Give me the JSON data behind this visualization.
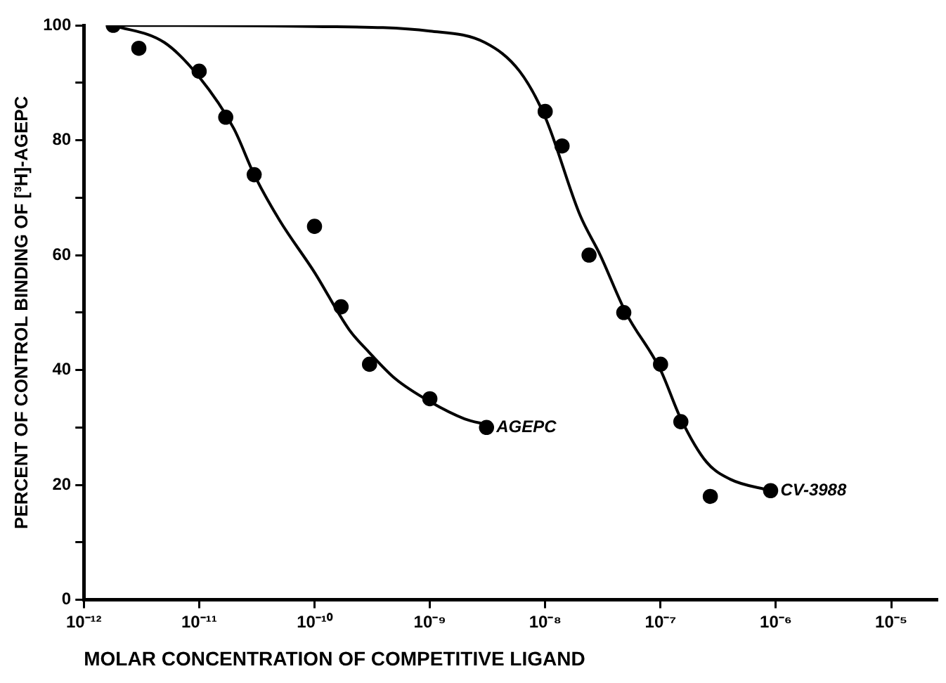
{
  "chart_data": {
    "type": "scatter",
    "xlabel": "MOLAR CONCENTRATION OF COMPETITIVE LIGAND",
    "ylabel": "PERCENT OF CONTROL BINDING OF [³H]-AGEPC",
    "log": "x",
    "grid": false,
    "legend": false,
    "marker": "circle",
    "xlim": [
      1e-12,
      2.5e-05
    ],
    "xticks": [
      {
        "value": 1e-12,
        "label": "10⁻¹²"
      },
      {
        "value": 1e-11,
        "label": "10⁻¹¹"
      },
      {
        "value": 1e-10,
        "label": "10⁻¹⁰"
      },
      {
        "value": 1e-09,
        "label": "10⁻⁹"
      },
      {
        "value": 1e-08,
        "label": "10⁻⁸"
      },
      {
        "value": 1e-07,
        "label": "10⁻⁷"
      },
      {
        "value": 1e-06,
        "label": "10⁻⁶"
      },
      {
        "value": 1e-05,
        "label": "10⁻⁵"
      }
    ],
    "ylim": [
      0,
      100
    ],
    "yticks": [
      0,
      {
        "value": 10,
        "label": null
      },
      20,
      {
        "value": 30,
        "label": null
      },
      40,
      {
        "value": 50,
        "label": null
      },
      60,
      {
        "value": 70,
        "label": null
      },
      80,
      {
        "value": 90,
        "label": null
      },
      100
    ],
    "series": [
      {
        "type": "line",
        "color": "#000000",
        "marker": "none",
        "x": [
          1.8e-12,
          5e-12,
          1e-11,
          2e-11,
          3e-11,
          5e-11,
          1e-10,
          2e-10,
          3e-10,
          5e-10,
          1e-09,
          2e-09,
          3.1e-09
        ],
        "values": [
          100,
          97,
          91,
          82,
          74,
          66,
          57,
          47,
          43,
          38.5,
          34.5,
          31.5,
          30.5
        ]
      },
      {
        "type": "line",
        "color": "#000000",
        "marker": "none",
        "x": [
          1.8e-12,
          1e-10,
          1e-09,
          3e-09,
          6e-09,
          1e-08,
          2e-08,
          3e-08,
          5e-08,
          1e-07,
          1.5e-07,
          2.5e-07,
          4e-07,
          9e-07
        ],
        "values": [
          100,
          99.8,
          99,
          97,
          92,
          84,
          67,
          60,
          50,
          40,
          31.5,
          24,
          21,
          19
        ]
      },
      {
        "name": "AGEPC",
        "color": "#000000",
        "x": [
          1.8e-12,
          3e-12,
          1e-11,
          1.7e-11,
          3e-11,
          1e-10,
          1.7e-10,
          3e-10,
          1e-09,
          3.1e-09
        ],
        "values": [
          100,
          96,
          92,
          84,
          74,
          65,
          51,
          41,
          35,
          30
        ]
      },
      {
        "name": "CV-3988",
        "color": "#000000",
        "x": [
          1e-08,
          1.4e-08,
          2.4e-08,
          4.8e-08,
          1e-07,
          1.5e-07,
          2.7e-07,
          9e-07
        ],
        "values": [
          85,
          79,
          60,
          50,
          41,
          31,
          18,
          19
        ]
      }
    ]
  }
}
